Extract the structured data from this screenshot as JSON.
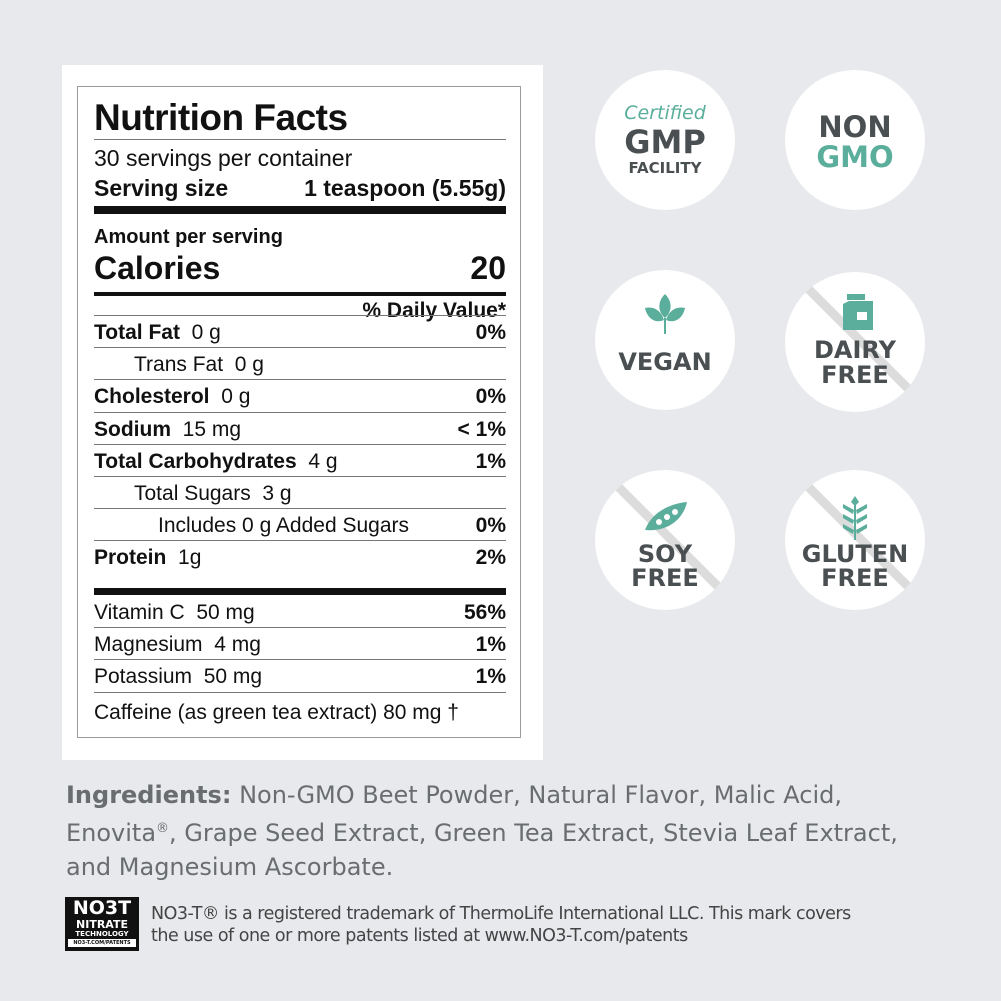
{
  "label": {
    "title": "Nutrition Facts",
    "servings": "30 servings per container",
    "serving_size_label": "Serving size",
    "serving_size_value": "1 teaspoon (5.55g)",
    "amount_per_serving": "Amount per serving",
    "calories_label": "Calories",
    "calories_value": "20",
    "dv_header": "% Daily Value*",
    "rows": [
      {
        "name": "Total Fat",
        "amount": "0 g",
        "dv": "0%",
        "bold": true,
        "indent": 0
      },
      {
        "name": "Trans Fat",
        "amount": "0 g",
        "dv": "",
        "bold": false,
        "indent": 1
      },
      {
        "name": "Cholesterol",
        "amount": "0 g",
        "dv": "0%",
        "bold": true,
        "indent": 0
      },
      {
        "name": "Sodium",
        "amount": "15 mg",
        "dv": "< 1%",
        "bold": true,
        "indent": 0
      },
      {
        "name": "Total Carbohydrates",
        "amount": "4 g",
        "dv": "1%",
        "bold": true,
        "indent": 0
      },
      {
        "name": "Total Sugars",
        "amount": "3 g",
        "dv": "",
        "bold": false,
        "indent": 1
      },
      {
        "name": "Includes 0 g Added Sugars",
        "amount": "",
        "dv": "0%",
        "bold": false,
        "indent": 2
      },
      {
        "name": "Protein",
        "amount": "1g",
        "dv": "2%",
        "bold": true,
        "indent": 0
      }
    ],
    "vitamins": [
      {
        "name": "Vitamin C",
        "amount": "50 mg",
        "dv": "56%"
      },
      {
        "name": "Magnesium",
        "amount": "4 mg",
        "dv": "1%"
      },
      {
        "name": "Potassium",
        "amount": "50 mg",
        "dv": "1%"
      }
    ],
    "caffeine": "Caffeine (as green tea extract) 80 mg †"
  },
  "badges": {
    "gmp": {
      "top": "Certified",
      "mid": "GMP",
      "bot": "FACILITY"
    },
    "nongmo": {
      "top": "NON",
      "bot": "GMO"
    },
    "vegan": {
      "text": "VEGAN",
      "icon": "leaf-icon"
    },
    "dairy": {
      "top": "DAIRY",
      "bot": "FREE",
      "icon": "milk-carton-icon"
    },
    "soy": {
      "top": "SOY",
      "bot": "FREE",
      "icon": "pea-pod-icon"
    },
    "gluten": {
      "top": "GLUTEN",
      "bot": "FREE",
      "icon": "wheat-icon"
    }
  },
  "ingredients": {
    "label": "Ingredients:",
    "text1": " Non-GMO Beet Powder, Natural Flavor, Malic Acid, Enovita",
    "reg": "®",
    "text2": ", Grape Seed Extract, Green Tea Extract, Stevia Leaf Extract, and Magnesium Ascorbate."
  },
  "footer": {
    "logo": "NO3-T NITRATE TECHNOLOGY NO3-T.COM/PATENTS",
    "line1": "NO3-T® is a registered trademark of ThermoLife International LLC. This mark covers",
    "line2": "the use of one or more patents listed at www.NO3-T.com/patents"
  },
  "colors": {
    "teal": "#5aae9b",
    "gray": "#4a4f52",
    "background": "#e8e9ec"
  }
}
